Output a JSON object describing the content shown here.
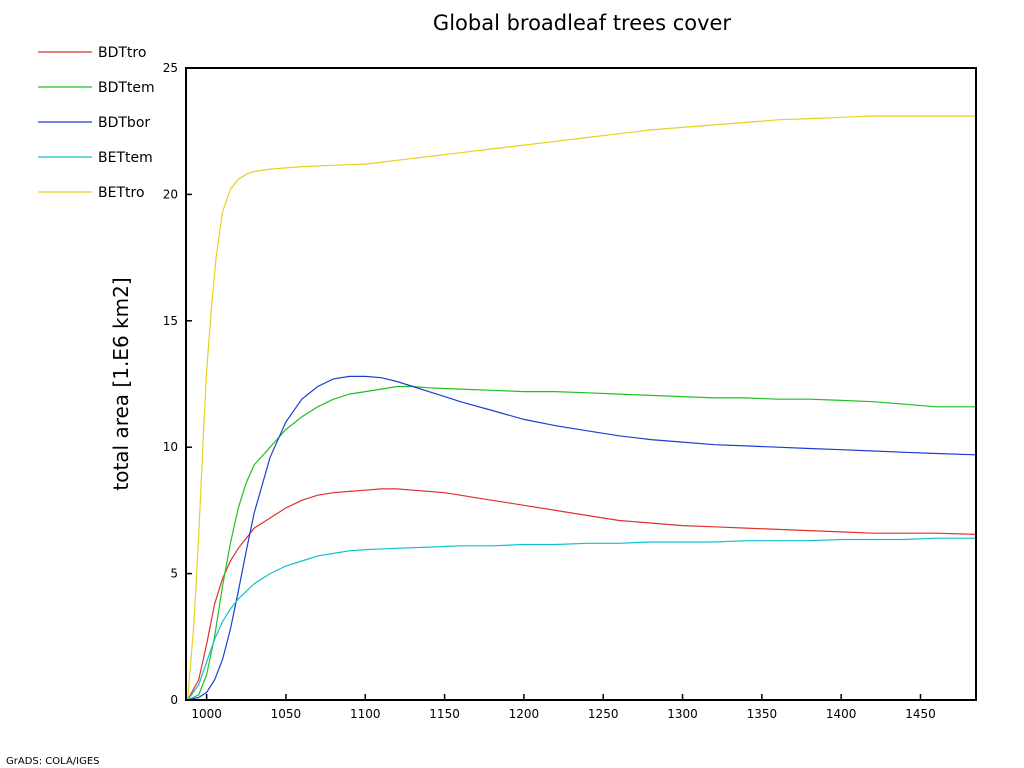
{
  "chart_data": {
    "type": "line",
    "title": "Global broadleaf trees cover",
    "xlabel": "",
    "ylabel": "total area [1.E6 km2]",
    "xlim": [
      987,
      1485
    ],
    "ylim": [
      0,
      25
    ],
    "xticks": [
      1000,
      1050,
      1100,
      1150,
      1200,
      1250,
      1300,
      1350,
      1400,
      1450
    ],
    "yticks": [
      0,
      5,
      10,
      15,
      20,
      25
    ],
    "grid": false,
    "legend_position": "top-left",
    "series": [
      {
        "name": "BDTtro",
        "color": "#e03030",
        "x": [
          988,
          995,
          1000,
          1005,
          1010,
          1015,
          1020,
          1025,
          1030,
          1040,
          1050,
          1060,
          1070,
          1080,
          1090,
          1100,
          1110,
          1120,
          1130,
          1140,
          1150,
          1160,
          1170,
          1180,
          1190,
          1200,
          1220,
          1240,
          1260,
          1280,
          1300,
          1320,
          1340,
          1360,
          1380,
          1400,
          1420,
          1440,
          1460,
          1485
        ],
        "y": [
          0.0,
          0.8,
          2.2,
          3.8,
          4.8,
          5.5,
          6.0,
          6.4,
          6.8,
          7.2,
          7.6,
          7.9,
          8.1,
          8.2,
          8.25,
          8.3,
          8.35,
          8.35,
          8.3,
          8.25,
          8.2,
          8.1,
          8.0,
          7.9,
          7.8,
          7.7,
          7.5,
          7.3,
          7.1,
          7.0,
          6.9,
          6.85,
          6.8,
          6.75,
          6.7,
          6.65,
          6.6,
          6.6,
          6.6,
          6.55
        ]
      },
      {
        "name": "BDTtem",
        "color": "#20c020",
        "x": [
          988,
          995,
          1000,
          1005,
          1010,
          1015,
          1020,
          1025,
          1030,
          1040,
          1050,
          1060,
          1070,
          1080,
          1090,
          1100,
          1110,
          1120,
          1130,
          1140,
          1160,
          1180,
          1200,
          1220,
          1240,
          1260,
          1280,
          1300,
          1320,
          1340,
          1360,
          1380,
          1400,
          1420,
          1440,
          1460,
          1485
        ],
        "y": [
          0.0,
          0.2,
          1.0,
          2.5,
          4.5,
          6.2,
          7.6,
          8.6,
          9.3,
          10.0,
          10.7,
          11.2,
          11.6,
          11.9,
          12.1,
          12.2,
          12.3,
          12.4,
          12.4,
          12.35,
          12.3,
          12.25,
          12.2,
          12.2,
          12.15,
          12.1,
          12.05,
          12.0,
          11.95,
          11.95,
          11.9,
          11.9,
          11.85,
          11.8,
          11.7,
          11.6,
          11.6
        ]
      },
      {
        "name": "BDTbor",
        "color": "#1a3fd0",
        "x": [
          988,
          995,
          1000,
          1005,
          1010,
          1015,
          1020,
          1025,
          1030,
          1040,
          1050,
          1060,
          1070,
          1080,
          1090,
          1100,
          1110,
          1120,
          1130,
          1140,
          1150,
          1160,
          1180,
          1200,
          1220,
          1240,
          1260,
          1280,
          1300,
          1320,
          1340,
          1360,
          1380,
          1400,
          1420,
          1440,
          1460,
          1485
        ],
        "y": [
          0.0,
          0.1,
          0.3,
          0.8,
          1.6,
          2.8,
          4.3,
          5.9,
          7.4,
          9.6,
          11.0,
          11.9,
          12.4,
          12.7,
          12.8,
          12.8,
          12.75,
          12.6,
          12.4,
          12.2,
          12.0,
          11.8,
          11.45,
          11.1,
          10.85,
          10.65,
          10.45,
          10.3,
          10.2,
          10.1,
          10.05,
          10.0,
          9.95,
          9.9,
          9.85,
          9.8,
          9.75,
          9.7
        ]
      },
      {
        "name": "BETtem",
        "color": "#10c0d0",
        "x": [
          988,
          995,
          1000,
          1005,
          1010,
          1015,
          1020,
          1025,
          1030,
          1040,
          1050,
          1060,
          1070,
          1080,
          1090,
          1100,
          1120,
          1140,
          1160,
          1180,
          1200,
          1220,
          1240,
          1260,
          1280,
          1300,
          1320,
          1340,
          1360,
          1380,
          1400,
          1420,
          1440,
          1460,
          1485
        ],
        "y": [
          0.0,
          0.6,
          1.5,
          2.4,
          3.1,
          3.6,
          4.0,
          4.3,
          4.6,
          5.0,
          5.3,
          5.5,
          5.7,
          5.8,
          5.9,
          5.95,
          6.0,
          6.05,
          6.1,
          6.1,
          6.15,
          6.15,
          6.2,
          6.2,
          6.25,
          6.25,
          6.25,
          6.3,
          6.3,
          6.3,
          6.35,
          6.35,
          6.35,
          6.4,
          6.4
        ]
      },
      {
        "name": "BETtro",
        "color": "#e8d020",
        "x": [
          988,
          992,
          995,
          998,
          1000,
          1003,
          1006,
          1010,
          1015,
          1020,
          1025,
          1030,
          1040,
          1050,
          1060,
          1080,
          1100,
          1120,
          1140,
          1160,
          1180,
          1200,
          1220,
          1240,
          1260,
          1280,
          1300,
          1320,
          1340,
          1360,
          1380,
          1400,
          1420,
          1440,
          1460,
          1485
        ],
        "y": [
          0.0,
          3.0,
          6.5,
          10.5,
          13.0,
          15.5,
          17.5,
          19.3,
          20.2,
          20.6,
          20.8,
          20.9,
          21.0,
          21.05,
          21.1,
          21.15,
          21.2,
          21.35,
          21.5,
          21.65,
          21.8,
          21.95,
          22.1,
          22.25,
          22.4,
          22.55,
          22.65,
          22.75,
          22.85,
          22.95,
          23.0,
          23.05,
          23.1,
          23.1,
          23.1,
          23.1
        ]
      }
    ]
  },
  "footer": {
    "credit": "GrADS: COLA/IGES"
  }
}
